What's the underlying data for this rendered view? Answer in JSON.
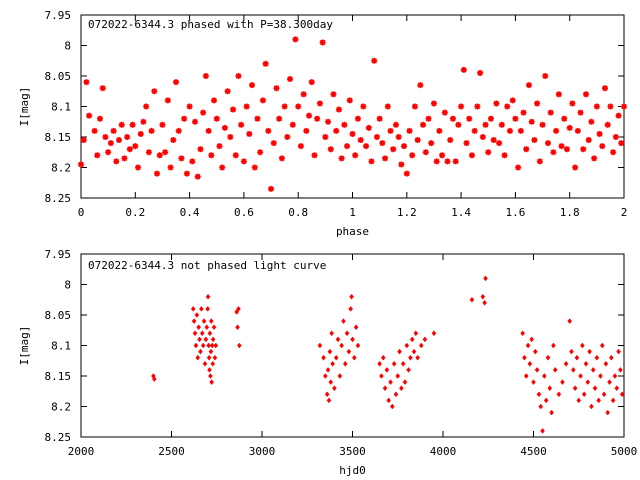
{
  "chart_data": [
    {
      "type": "scatter",
      "title": "072022-6344.3 phased with P=38.300day",
      "xlabel": "phase",
      "ylabel": "I[mag]",
      "xlim": [
        0,
        2
      ],
      "ylim": [
        7.95,
        8.25
      ],
      "y_inverted": true,
      "x_ticks": [
        "0",
        "0.2",
        "0.4",
        "0.6",
        "0.8",
        "1",
        "1.2",
        "1.4",
        "1.6",
        "1.8",
        "2"
      ],
      "x_tick_values": [
        0,
        0.2,
        0.4,
        0.6,
        0.8,
        1.0,
        1.2,
        1.4,
        1.6,
        1.8,
        2.0
      ],
      "y_ticks": [
        "7.95",
        "8",
        "8.05",
        "8.1",
        "8.15",
        "8.2",
        "8.25"
      ],
      "y_tick_values": [
        7.95,
        8.0,
        8.05,
        8.1,
        8.15,
        8.2,
        8.25
      ],
      "marker_color": "#ff0000",
      "marker_shape": "star",
      "grid": false,
      "points": [
        [
          0.0,
          8.195
        ],
        [
          0.01,
          8.155
        ],
        [
          0.02,
          8.06
        ],
        [
          0.03,
          8.115
        ],
        [
          0.05,
          8.14
        ],
        [
          0.06,
          8.18
        ],
        [
          0.07,
          8.12
        ],
        [
          0.08,
          8.07
        ],
        [
          0.09,
          8.15
        ],
        [
          0.1,
          8.175
        ],
        [
          0.11,
          8.16
        ],
        [
          0.12,
          8.14
        ],
        [
          0.13,
          8.19
        ],
        [
          0.14,
          8.155
        ],
        [
          0.15,
          8.13
        ],
        [
          0.16,
          8.185
        ],
        [
          0.17,
          8.15
        ],
        [
          0.18,
          8.17
        ],
        [
          0.19,
          8.13
        ],
        [
          0.2,
          8.165
        ],
        [
          0.21,
          8.2
        ],
        [
          0.22,
          8.145
        ],
        [
          0.23,
          8.125
        ],
        [
          0.24,
          8.1
        ],
        [
          0.25,
          8.175
        ],
        [
          0.26,
          8.14
        ],
        [
          0.27,
          8.075
        ],
        [
          0.28,
          8.21
        ],
        [
          0.29,
          8.18
        ],
        [
          0.3,
          8.13
        ],
        [
          0.31,
          8.175
        ],
        [
          0.32,
          8.09
        ],
        [
          0.33,
          8.2
        ],
        [
          0.34,
          8.155
        ],
        [
          0.35,
          8.06
        ],
        [
          0.36,
          8.14
        ],
        [
          0.37,
          8.185
        ],
        [
          0.38,
          8.12
        ],
        [
          0.39,
          8.21
        ],
        [
          0.4,
          8.1
        ],
        [
          0.41,
          8.19
        ],
        [
          0.42,
          8.125
        ],
        [
          0.43,
          8.215
        ],
        [
          0.44,
          8.17
        ],
        [
          0.45,
          8.11
        ],
        [
          0.46,
          8.05
        ],
        [
          0.47,
          8.14
        ],
        [
          0.48,
          8.18
        ],
        [
          0.49,
          8.09
        ],
        [
          0.5,
          8.12
        ],
        [
          0.51,
          8.165
        ],
        [
          0.52,
          8.2
        ],
        [
          0.53,
          8.135
        ],
        [
          0.54,
          8.075
        ],
        [
          0.55,
          8.15
        ],
        [
          0.56,
          8.105
        ],
        [
          0.57,
          8.18
        ],
        [
          0.58,
          8.05
        ],
        [
          0.59,
          8.13
        ],
        [
          0.6,
          8.19
        ],
        [
          0.61,
          8.1
        ],
        [
          0.62,
          8.145
        ],
        [
          0.63,
          8.065
        ],
        [
          0.64,
          8.2
        ],
        [
          0.65,
          8.12
        ],
        [
          0.66,
          8.175
        ],
        [
          0.67,
          8.09
        ],
        [
          0.68,
          8.03
        ],
        [
          0.69,
          8.14
        ],
        [
          0.7,
          8.235
        ],
        [
          0.71,
          8.16
        ],
        [
          0.72,
          8.07
        ],
        [
          0.73,
          8.12
        ],
        [
          0.74,
          8.185
        ],
        [
          0.75,
          8.1
        ],
        [
          0.76,
          8.15
        ],
        [
          0.77,
          8.055
        ],
        [
          0.78,
          8.13
        ],
        [
          0.79,
          7.99
        ],
        [
          0.8,
          8.1
        ],
        [
          0.81,
          8.165
        ],
        [
          0.82,
          8.08
        ],
        [
          0.83,
          8.14
        ],
        [
          0.84,
          8.115
        ],
        [
          0.85,
          8.06
        ],
        [
          0.86,
          8.18
        ],
        [
          0.87,
          8.12
        ],
        [
          0.88,
          8.095
        ],
        [
          0.89,
          7.995
        ],
        [
          0.9,
          8.15
        ],
        [
          0.91,
          8.125
        ],
        [
          0.92,
          8.17
        ],
        [
          0.93,
          8.08
        ],
        [
          0.94,
          8.14
        ],
        [
          0.95,
          8.105
        ],
        [
          0.96,
          8.185
        ],
        [
          0.97,
          8.13
        ],
        [
          0.98,
          8.165
        ],
        [
          0.99,
          8.09
        ],
        [
          1.0,
          8.145
        ],
        [
          1.01,
          8.18
        ],
        [
          1.02,
          8.12
        ],
        [
          1.03,
          8.155
        ],
        [
          1.04,
          8.1
        ],
        [
          1.05,
          8.165
        ],
        [
          1.06,
          8.135
        ],
        [
          1.07,
          8.19
        ],
        [
          1.08,
          8.025
        ],
        [
          1.09,
          8.15
        ],
        [
          1.1,
          8.12
        ],
        [
          1.11,
          8.16
        ],
        [
          1.12,
          8.185
        ],
        [
          1.13,
          8.1
        ],
        [
          1.14,
          8.14
        ],
        [
          1.15,
          8.17
        ],
        [
          1.16,
          8.13
        ],
        [
          1.17,
          8.15
        ],
        [
          1.18,
          8.195
        ],
        [
          1.19,
          8.165
        ],
        [
          1.2,
          8.21
        ],
        [
          1.21,
          8.14
        ],
        [
          1.22,
          8.18
        ],
        [
          1.23,
          8.1
        ],
        [
          1.24,
          8.155
        ],
        [
          1.25,
          8.065
        ],
        [
          1.26,
          8.13
        ],
        [
          1.27,
          8.175
        ],
        [
          1.28,
          8.12
        ],
        [
          1.29,
          8.16
        ],
        [
          1.3,
          8.095
        ],
        [
          1.31,
          8.19
        ],
        [
          1.32,
          8.14
        ],
        [
          1.33,
          8.18
        ],
        [
          1.34,
          8.11
        ],
        [
          1.35,
          8.19
        ],
        [
          1.36,
          8.155
        ],
        [
          1.37,
          8.12
        ],
        [
          1.38,
          8.19
        ],
        [
          1.39,
          8.13
        ],
        [
          1.4,
          8.1
        ],
        [
          1.41,
          8.04
        ],
        [
          1.42,
          8.16
        ],
        [
          1.43,
          8.12
        ],
        [
          1.44,
          8.18
        ],
        [
          1.45,
          8.14
        ],
        [
          1.46,
          8.1
        ],
        [
          1.47,
          8.045
        ],
        [
          1.48,
          8.15
        ],
        [
          1.49,
          8.13
        ],
        [
          1.5,
          8.175
        ],
        [
          1.51,
          8.12
        ],
        [
          1.52,
          8.155
        ],
        [
          1.53,
          8.095
        ],
        [
          1.54,
          8.16
        ],
        [
          1.55,
          8.13
        ],
        [
          1.56,
          8.18
        ],
        [
          1.57,
          8.1
        ],
        [
          1.58,
          8.14
        ],
        [
          1.59,
          8.09
        ],
        [
          1.6,
          8.12
        ],
        [
          1.61,
          8.2
        ],
        [
          1.62,
          8.14
        ],
        [
          1.63,
          8.11
        ],
        [
          1.64,
          8.17
        ],
        [
          1.65,
          8.065
        ],
        [
          1.66,
          8.125
        ],
        [
          1.67,
          8.155
        ],
        [
          1.68,
          8.095
        ],
        [
          1.69,
          8.19
        ],
        [
          1.7,
          8.13
        ],
        [
          1.71,
          8.05
        ],
        [
          1.72,
          8.16
        ],
        [
          1.73,
          8.11
        ],
        [
          1.74,
          8.175
        ],
        [
          1.75,
          8.14
        ],
        [
          1.76,
          8.08
        ],
        [
          1.77,
          8.165
        ],
        [
          1.78,
          8.12
        ],
        [
          1.79,
          8.17
        ],
        [
          1.8,
          8.135
        ],
        [
          1.81,
          8.095
        ],
        [
          1.82,
          8.2
        ],
        [
          1.83,
          8.14
        ],
        [
          1.84,
          8.11
        ],
        [
          1.85,
          8.17
        ],
        [
          1.86,
          8.08
        ],
        [
          1.87,
          8.155
        ],
        [
          1.88,
          8.125
        ],
        [
          1.89,
          8.185
        ],
        [
          1.9,
          8.1
        ],
        [
          1.91,
          8.145
        ],
        [
          1.92,
          8.165
        ],
        [
          1.93,
          8.07
        ],
        [
          1.94,
          8.13
        ],
        [
          1.95,
          8.1
        ],
        [
          1.96,
          8.175
        ],
        [
          1.97,
          8.15
        ],
        [
          1.98,
          8.115
        ],
        [
          1.99,
          8.16
        ],
        [
          2.0,
          8.1
        ]
      ]
    },
    {
      "type": "scatter",
      "title": "072022-6344.3 not phased light curve",
      "xlabel": "hjd0",
      "ylabel": "I[mag]",
      "xlim": [
        2000,
        5000
      ],
      "ylim": [
        7.95,
        8.25
      ],
      "y_inverted": true,
      "x_ticks": [
        "2000",
        "2500",
        "3000",
        "3500",
        "4000",
        "4500",
        "5000"
      ],
      "x_tick_values": [
        2000,
        2500,
        3000,
        3500,
        4000,
        4500,
        5000
      ],
      "y_ticks": [
        "7.95",
        "8",
        "8.05",
        "8.1",
        "8.15",
        "8.2",
        "8.25"
      ],
      "y_tick_values": [
        7.95,
        8.0,
        8.05,
        8.1,
        8.15,
        8.2,
        8.25
      ],
      "marker_color": "#ff0000",
      "marker_shape": "diamond",
      "grid": false,
      "points": [
        [
          2400,
          8.15
        ],
        [
          2405,
          8.155
        ],
        [
          2620,
          8.04
        ],
        [
          2625,
          8.06
        ],
        [
          2630,
          8.08
        ],
        [
          2635,
          8.1
        ],
        [
          2640,
          8.05
        ],
        [
          2645,
          8.12
        ],
        [
          2650,
          8.07
        ],
        [
          2655,
          8.09
        ],
        [
          2660,
          8.11
        ],
        [
          2665,
          8.04
        ],
        [
          2670,
          8.08
        ],
        [
          2675,
          8.1
        ],
        [
          2680,
          8.06
        ],
        [
          2685,
          8.13
        ],
        [
          2690,
          8.09
        ],
        [
          2695,
          8.07
        ],
        [
          2700,
          8.04
        ],
        [
          2702,
          8.02
        ],
        [
          2705,
          8.1
        ],
        [
          2708,
          8.12
        ],
        [
          2710,
          8.14
        ],
        [
          2712,
          8.08
        ],
        [
          2715,
          8.15
        ],
        [
          2718,
          8.11
        ],
        [
          2720,
          8.06
        ],
        [
          2722,
          8.16
        ],
        [
          2725,
          8.1
        ],
        [
          2728,
          8.13
        ],
        [
          2730,
          8.09
        ],
        [
          2735,
          8.07
        ],
        [
          2740,
          8.12
        ],
        [
          2745,
          8.1
        ],
        [
          2860,
          8.045
        ],
        [
          2865,
          8.07
        ],
        [
          2870,
          8.04
        ],
        [
          2875,
          8.1
        ],
        [
          3320,
          8.1
        ],
        [
          3340,
          8.12
        ],
        [
          3350,
          8.15
        ],
        [
          3360,
          8.18
        ],
        [
          3365,
          8.14
        ],
        [
          3370,
          8.19
        ],
        [
          3375,
          8.11
        ],
        [
          3380,
          8.16
        ],
        [
          3385,
          8.08
        ],
        [
          3390,
          8.13
        ],
        [
          3400,
          8.17
        ],
        [
          3410,
          8.12
        ],
        [
          3420,
          8.09
        ],
        [
          3430,
          8.15
        ],
        [
          3440,
          8.1
        ],
        [
          3450,
          8.06
        ],
        [
          3460,
          8.13
        ],
        [
          3470,
          8.08
        ],
        [
          3480,
          8.11
        ],
        [
          3490,
          8.04
        ],
        [
          3495,
          8.02
        ],
        [
          3500,
          8.09
        ],
        [
          3510,
          8.12
        ],
        [
          3520,
          8.07
        ],
        [
          3530,
          8.1
        ],
        [
          3650,
          8.13
        ],
        [
          3660,
          8.15
        ],
        [
          3670,
          8.12
        ],
        [
          3680,
          8.17
        ],
        [
          3690,
          8.14
        ],
        [
          3700,
          8.19
        ],
        [
          3710,
          8.16
        ],
        [
          3720,
          8.2
        ],
        [
          3730,
          8.13
        ],
        [
          3740,
          8.18
        ],
        [
          3750,
          8.15
        ],
        [
          3760,
          8.11
        ],
        [
          3770,
          8.17
        ],
        [
          3780,
          8.13
        ],
        [
          3790,
          8.16
        ],
        [
          3800,
          8.1
        ],
        [
          3810,
          8.14
        ],
        [
          3820,
          8.12
        ],
        [
          3830,
          8.09
        ],
        [
          3840,
          8.11
        ],
        [
          3850,
          8.08
        ],
        [
          3860,
          8.12
        ],
        [
          3880,
          8.1
        ],
        [
          3900,
          8.09
        ],
        [
          3950,
          8.08
        ],
        [
          4160,
          8.025
        ],
        [
          4220,
          8.02
        ],
        [
          4230,
          8.03
        ],
        [
          4235,
          7.99
        ],
        [
          4440,
          8.08
        ],
        [
          4450,
          8.12
        ],
        [
          4460,
          8.15
        ],
        [
          4470,
          8.1
        ],
        [
          4480,
          8.13
        ],
        [
          4490,
          8.09
        ],
        [
          4500,
          8.16
        ],
        [
          4510,
          8.11
        ],
        [
          4520,
          8.14
        ],
        [
          4530,
          8.18
        ],
        [
          4540,
          8.2
        ],
        [
          4550,
          8.24
        ],
        [
          4560,
          8.15
        ],
        [
          4570,
          8.19
        ],
        [
          4580,
          8.12
        ],
        [
          4590,
          8.17
        ],
        [
          4600,
          8.21
        ],
        [
          4610,
          8.1
        ],
        [
          4620,
          8.14
        ],
        [
          4640,
          8.18
        ],
        [
          4660,
          8.16
        ],
        [
          4680,
          8.13
        ],
        [
          4700,
          8.06
        ],
        [
          4710,
          8.11
        ],
        [
          4720,
          8.14
        ],
        [
          4730,
          8.17
        ],
        [
          4740,
          8.12
        ],
        [
          4750,
          8.19
        ],
        [
          4760,
          8.15
        ],
        [
          4770,
          8.1
        ],
        [
          4780,
          8.18
        ],
        [
          4790,
          8.13
        ],
        [
          4800,
          8.16
        ],
        [
          4810,
          8.11
        ],
        [
          4820,
          8.2
        ],
        [
          4830,
          8.14
        ],
        [
          4840,
          8.17
        ],
        [
          4850,
          8.12
        ],
        [
          4860,
          8.19
        ],
        [
          4870,
          8.15
        ],
        [
          4880,
          8.1
        ],
        [
          4890,
          8.18
        ],
        [
          4900,
          8.13
        ],
        [
          4910,
          8.21
        ],
        [
          4920,
          8.16
        ],
        [
          4930,
          8.12
        ],
        [
          4940,
          8.19
        ],
        [
          4950,
          8.15
        ],
        [
          4960,
          8.17
        ],
        [
          4970,
          8.11
        ],
        [
          4980,
          8.14
        ],
        [
          4990,
          8.18
        ]
      ]
    }
  ]
}
